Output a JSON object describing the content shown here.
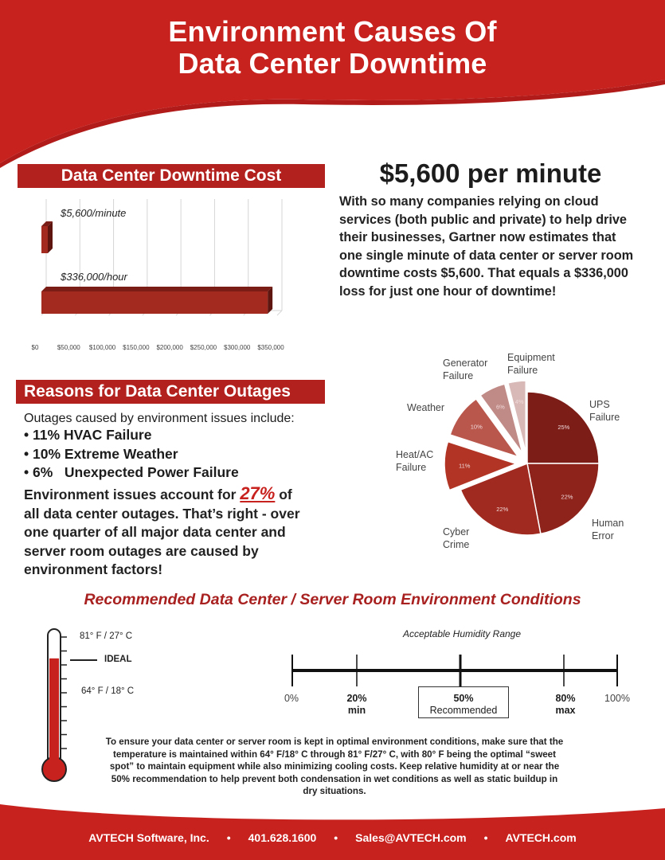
{
  "header": {
    "title_line1": "Environment Causes Of",
    "title_line2": "Data Center Downtime"
  },
  "cost_chart": {
    "header": "Data Center Downtime Cost",
    "chart_data": {
      "type": "bar",
      "orientation": "horizontal",
      "categories": [
        "$336,000/hour",
        "$5,600/minute"
      ],
      "values": [
        336000,
        5600
      ],
      "xlim": [
        0,
        350000
      ],
      "xticks": [
        "$0",
        "$50,000",
        "$100,000",
        "$150,000",
        "$200,000",
        "$250,000",
        "$300,000",
        "$350,000"
      ],
      "color": "#a32a1e"
    }
  },
  "cost_summary": {
    "headline": "$5,600 per minute",
    "p1": "With so many companies relying on cloud services (both public and private) to help drive their businesses, Gartner now estimates that ",
    "p2": "one single minute of data center or server room downtime costs $5,600",
    "p3": ". That equals a ",
    "p4": "$336,000",
    "p5": " loss for just one hour of downtime!"
  },
  "reasons": {
    "header": "Reasons for Data Center Outages",
    "intro": "Outages caused by environment issues include:",
    "items": [
      {
        "pct": "11%",
        "label": "HVAC Failure"
      },
      {
        "pct": "10%",
        "label": "Extreme Weather"
      },
      {
        "pct": "6%",
        "label": "Unexpected Power Failure"
      }
    ],
    "body_pre": "Environment issues account for ",
    "body_big": "27%",
    "body_post": " of all data center outages. That’s right - over one quarter of all major data center and server room outages are caused by environment factors!"
  },
  "outage_pie": {
    "chart_data": {
      "type": "pie",
      "slices": [
        {
          "label": "UPS Failure",
          "value": 25,
          "text": "25%",
          "color": "#7c1d18"
        },
        {
          "label": "Human Error",
          "value": 22,
          "text": "22%",
          "color": "#8e231c"
        },
        {
          "label": "Cyber Crime",
          "value": 22,
          "text": "22%",
          "color": "#a02a1f"
        },
        {
          "label": "Heat/AC Failure",
          "value": 11,
          "text": "11%",
          "color": "#b13424"
        },
        {
          "label": "Weather",
          "value": 10,
          "text": "10%",
          "color": "#b9574d"
        },
        {
          "label": "Generator Failure",
          "value": 6,
          "text": "6%",
          "color": "#c08a86"
        },
        {
          "label": "Equipment Failure",
          "value": 4,
          "text": "4%",
          "color": "#d8b9b7"
        }
      ]
    },
    "labels": {
      "ups_1": "UPS",
      "ups_2": "Failure",
      "human_1": "Human",
      "human_2": "Error",
      "cyber_1": "Cyber",
      "cyber_2": "Crime",
      "heat_1": "Heat/AC",
      "heat_2": "Failure",
      "weather": "Weather",
      "gen_1": "Generator",
      "gen_2": "Failure",
      "equip_1": "Equipment",
      "equip_2": "Failure"
    }
  },
  "environment": {
    "title": "Recommended Data Center / Server Room Environment Conditions",
    "thermometer": {
      "high": "81° F / 27° C",
      "ideal": "IDEAL",
      "low": "64° F / 18° C",
      "fill_level": 0.77,
      "color": "#c8221f"
    },
    "humidity": {
      "title": "Acceptable Humidity Range",
      "p0": "0%",
      "p20": "20%",
      "p20_sub": "min",
      "p50": "50%",
      "p50_sub": "Recommended",
      "p80": "80%",
      "p80_sub": "max",
      "p100": "100%"
    },
    "footnote": "To ensure your data center or server room is kept in optimal environment conditions, make sure that the temperature is maintained within 64° F/18° C through 81° F/27° C, with 80° F being the optimal “sweet spot” to maintain equipment while also minimizing cooling costs. Keep relative humidity at or near the 50% recommendation to help prevent both condensation in wet conditions as well as static buildup in dry situations."
  },
  "footer": {
    "company": "AVTECH Software, Inc.",
    "phone": "401.628.1600",
    "email": "Sales@AVTECH.com",
    "site": "AVTECH.com",
    "sep": "•"
  },
  "colors": {
    "brand_red": "#c8221f",
    "header_red": "#b3211f"
  }
}
